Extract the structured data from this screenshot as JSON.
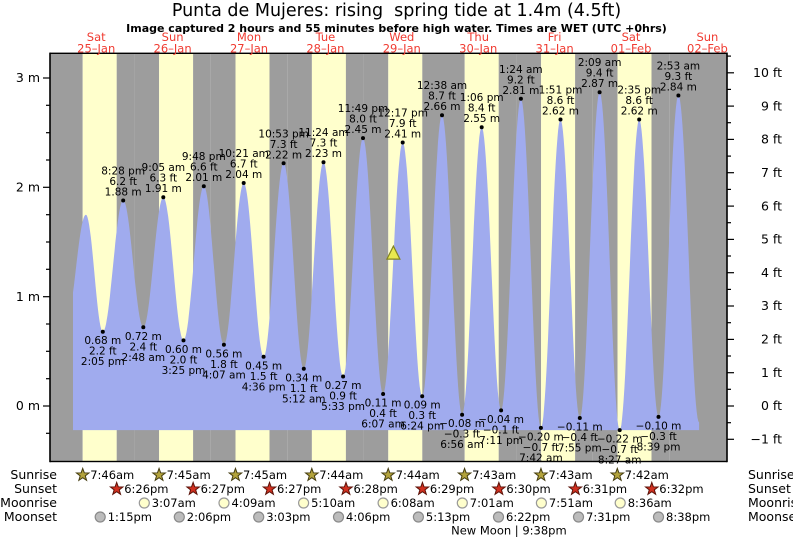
{
  "title": "Punta de Mujeres: rising  spring tide at 1.4m (4.5ft)",
  "subtitle": "Image captured 2 hours and 55 minutes before high water. Times are WET (UTC +0hrs)",
  "days": [
    {
      "name": "Sat",
      "date": "25–Jan"
    },
    {
      "name": "Sun",
      "date": "26–Jan"
    },
    {
      "name": "Mon",
      "date": "27–Jan"
    },
    {
      "name": "Tue",
      "date": "28–Jan"
    },
    {
      "name": "Wed",
      "date": "29–Jan"
    },
    {
      "name": "Thu",
      "date": "30–Jan"
    },
    {
      "name": "Fri",
      "date": "31–Jan"
    },
    {
      "name": "Sat",
      "date": "01–Feb"
    },
    {
      "name": "Sun",
      "date": "02–Feb"
    }
  ],
  "axes": {
    "left": {
      "unit": "m",
      "ticks": [
        {
          "v": 3,
          "label": "3 m"
        },
        {
          "v": 2,
          "label": "2 m"
        },
        {
          "v": 1,
          "label": "1 m"
        },
        {
          "v": 0,
          "label": "0 m"
        }
      ]
    },
    "right": {
      "unit": "ft",
      "ticks": [
        {
          "v": 10,
          "label": "10 ft"
        },
        {
          "v": 9,
          "label": "9 ft"
        },
        {
          "v": 8,
          "label": "8 ft"
        },
        {
          "v": 7,
          "label": "7 ft"
        },
        {
          "v": 6,
          "label": "6 ft"
        },
        {
          "v": 5,
          "label": "5 ft"
        },
        {
          "v": 4,
          "label": "4 ft"
        },
        {
          "v": 3,
          "label": "3 ft"
        },
        {
          "v": 2,
          "label": "2 ft"
        },
        {
          "v": 1,
          "label": "1 ft"
        },
        {
          "v": 0,
          "label": "0 ft"
        },
        {
          "v": -1,
          "label": "−1 ft"
        }
      ]
    }
  },
  "chart_data": {
    "type": "area",
    "title": "Punta de Mujeres tide curve, 25-Jan to 02-Feb",
    "ylim_m": [
      -0.5,
      3.2
    ],
    "ylim_ft": [
      -1,
      10
    ],
    "grid": false,
    "daylight": {
      "sunrise_hour": 7.75,
      "sunset_hour": 18.45,
      "no_daylight_days": [
        8
      ]
    },
    "data_window": {
      "start": {
        "day": 0,
        "hour": 4.7
      },
      "end": {
        "day": 8,
        "hour": 9.4
      }
    },
    "marker": {
      "m": 1.4,
      "ft": 4.5,
      "day": 4,
      "hour": 9.37,
      "meaning": "current tide level, rising"
    },
    "colors": {
      "night": "#9d9d9d",
      "day": "#ffffcc",
      "tide": "#a0abee",
      "label_red": "#f03b31",
      "marker_fill": "#e9e94e",
      "marker_stroke": "#83831f"
    },
    "points": [
      {
        "day": 0,
        "hour": 2.2,
        "m": 0.7,
        "kind": "low",
        "show": false
      },
      {
        "day": 0,
        "hour": 8.77,
        "m": 1.75,
        "kind": "high",
        "show": false
      },
      {
        "day": 0,
        "hour": 14.083,
        "m": 0.68,
        "ft": 2.2,
        "time": "2:05 pm",
        "kind": "low"
      },
      {
        "day": 0,
        "hour": 20.467,
        "m": 1.88,
        "ft": 6.2,
        "time": "8:28 pm",
        "kind": "high"
      },
      {
        "day": 1,
        "hour": 2.8,
        "m": 0.72,
        "ft": 2.4,
        "time": "2:48 am",
        "kind": "low"
      },
      {
        "day": 1,
        "hour": 9.083,
        "m": 1.91,
        "ft": 6.3,
        "time": "9:05 am",
        "kind": "high"
      },
      {
        "day": 1,
        "hour": 15.417,
        "m": 0.6,
        "ft": 2.0,
        "time": "3:25 pm",
        "kind": "low"
      },
      {
        "day": 1,
        "hour": 21.8,
        "m": 2.01,
        "ft": 6.6,
        "time": "9:48 pm",
        "kind": "high"
      },
      {
        "day": 2,
        "hour": 4.117,
        "m": 0.56,
        "ft": 1.8,
        "time": "4:07 am",
        "kind": "low"
      },
      {
        "day": 2,
        "hour": 10.35,
        "m": 2.04,
        "ft": 6.7,
        "time": "10:21 am",
        "kind": "high"
      },
      {
        "day": 2,
        "hour": 16.6,
        "m": 0.45,
        "ft": 1.5,
        "time": "4:36 pm",
        "kind": "low"
      },
      {
        "day": 2,
        "hour": 22.883,
        "m": 2.22,
        "ft": 7.3,
        "time": "10:53 pm",
        "kind": "high"
      },
      {
        "day": 3,
        "hour": 5.2,
        "m": 0.34,
        "ft": 1.1,
        "time": "5:12 am",
        "kind": "low"
      },
      {
        "day": 3,
        "hour": 11.4,
        "m": 2.23,
        "ft": 7.3,
        "time": "11:24 am",
        "kind": "high"
      },
      {
        "day": 3,
        "hour": 17.55,
        "m": 0.27,
        "ft": 0.9,
        "time": "5:33 pm",
        "kind": "low"
      },
      {
        "day": 3,
        "hour": 23.817,
        "m": 2.45,
        "ft": 8.0,
        "time": "11:49 pm",
        "kind": "high"
      },
      {
        "day": 4,
        "hour": 6.117,
        "m": 0.11,
        "ft": 0.4,
        "time": "6:07 am",
        "kind": "low"
      },
      {
        "day": 4,
        "hour": 12.283,
        "m": 2.41,
        "ft": 7.9,
        "time": "12:17 pm",
        "kind": "high"
      },
      {
        "day": 4,
        "hour": 18.4,
        "m": 0.09,
        "ft": 0.3,
        "time": "6:24 pm",
        "kind": "low"
      },
      {
        "day": 5,
        "hour": 0.633,
        "m": 2.66,
        "ft": 8.7,
        "time": "12:38 am",
        "kind": "high"
      },
      {
        "day": 5,
        "hour": 6.933,
        "m": -0.08,
        "ft": -0.3,
        "time": "6:56 am",
        "kind": "low"
      },
      {
        "day": 5,
        "hour": 13.1,
        "m": 2.55,
        "ft": 8.4,
        "time": "1:06 pm",
        "kind": "high"
      },
      {
        "day": 5,
        "hour": 19.183,
        "m": -0.04,
        "ft": -0.1,
        "time": "7:11 pm",
        "kind": "low"
      },
      {
        "day": 6,
        "hour": 1.4,
        "m": 2.81,
        "ft": 9.2,
        "time": "1:24 am",
        "kind": "high"
      },
      {
        "day": 6,
        "hour": 7.7,
        "m": -0.2,
        "ft": -0.7,
        "time": "7:42 am",
        "kind": "low"
      },
      {
        "day": 6,
        "hour": 13.85,
        "m": 2.62,
        "ft": 8.6,
        "time": "1:51 pm",
        "kind": "high"
      },
      {
        "day": 6,
        "hour": 19.917,
        "m": -0.11,
        "ft": -0.4,
        "time": "7:55 pm",
        "kind": "low"
      },
      {
        "day": 7,
        "hour": 2.15,
        "m": 2.87,
        "ft": 9.4,
        "time": "2:09 am",
        "kind": "high"
      },
      {
        "day": 7,
        "hour": 8.45,
        "m": -0.22,
        "ft": -0.7,
        "time": "8:27 am",
        "kind": "low"
      },
      {
        "day": 7,
        "hour": 14.583,
        "m": 2.62,
        "ft": 8.6,
        "time": "2:35 pm",
        "kind": "high"
      },
      {
        "day": 7,
        "hour": 20.65,
        "m": -0.1,
        "ft": -0.3,
        "time": "8:39 pm",
        "kind": "low"
      },
      {
        "day": 8,
        "hour": 2.883,
        "m": 2.84,
        "ft": 9.3,
        "time": "2:53 am",
        "kind": "high"
      },
      {
        "day": 8,
        "hour": 9.4,
        "m": -0.15,
        "kind": "low",
        "show": false
      }
    ]
  },
  "almanac": {
    "rows": [
      {
        "id": "sunrise",
        "label": "Sunrise",
        "icon": "sunrise-star",
        "icon_fill": "#b3a33c",
        "icon_stroke": "#443c10",
        "entries": [
          {
            "day": 0,
            "hour": 7.767,
            "time": "7:46am"
          },
          {
            "day": 1,
            "hour": 7.75,
            "time": "7:45am"
          },
          {
            "day": 2,
            "hour": 7.75,
            "time": "7:45am"
          },
          {
            "day": 3,
            "hour": 7.733,
            "time": "7:44am"
          },
          {
            "day": 4,
            "hour": 7.733,
            "time": "7:44am"
          },
          {
            "day": 5,
            "hour": 7.717,
            "time": "7:43am"
          },
          {
            "day": 6,
            "hour": 7.717,
            "time": "7:43am"
          },
          {
            "day": 7,
            "hour": 7.7,
            "time": "7:42am"
          }
        ]
      },
      {
        "id": "sunset",
        "label": "Sunset",
        "icon": "sunset-star",
        "icon_fill": "#d03020",
        "icon_stroke": "#5a1208",
        "entries": [
          {
            "day": 0,
            "hour": 18.433,
            "time": "6:26pm"
          },
          {
            "day": 1,
            "hour": 18.45,
            "time": "6:27pm"
          },
          {
            "day": 2,
            "hour": 18.45,
            "time": "6:27pm"
          },
          {
            "day": 3,
            "hour": 18.467,
            "time": "6:28pm"
          },
          {
            "day": 4,
            "hour": 18.483,
            "time": "6:29pm"
          },
          {
            "day": 5,
            "hour": 18.5,
            "time": "6:30pm"
          },
          {
            "day": 6,
            "hour": 18.517,
            "time": "6:31pm"
          },
          {
            "day": 7,
            "hour": 18.533,
            "time": "6:32pm"
          }
        ]
      },
      {
        "id": "moonrise",
        "label": "Moonrise",
        "icon": "moonrise-circle",
        "icon_fill": "#ffffcc",
        "icon_stroke": "#999999",
        "entries": [
          {
            "day": 1,
            "hour": 3.117,
            "time": "3:07am"
          },
          {
            "day": 2,
            "hour": 4.15,
            "time": "4:09am"
          },
          {
            "day": 3,
            "hour": 5.167,
            "time": "5:10am"
          },
          {
            "day": 4,
            "hour": 6.133,
            "time": "6:08am"
          },
          {
            "day": 5,
            "hour": 7.017,
            "time": "7:01am"
          },
          {
            "day": 6,
            "hour": 7.85,
            "time": "7:51am"
          },
          {
            "day": 7,
            "hour": 8.6,
            "time": "8:36am"
          }
        ]
      },
      {
        "id": "moonset",
        "label": "Moonset",
        "icon": "moonset-circle",
        "icon_fill": "#bcbcbc",
        "icon_stroke": "#8a8a8a",
        "entries": [
          {
            "day": 0,
            "hour": 13.25,
            "time": "1:15pm"
          },
          {
            "day": 1,
            "hour": 14.1,
            "time": "2:06pm"
          },
          {
            "day": 2,
            "hour": 15.05,
            "time": "3:03pm"
          },
          {
            "day": 3,
            "hour": 16.1,
            "time": "4:06pm"
          },
          {
            "day": 4,
            "hour": 17.217,
            "time": "5:13pm"
          },
          {
            "day": 5,
            "hour": 18.367,
            "time": "6:22pm"
          },
          {
            "day": 6,
            "hour": 19.517,
            "time": "7:31pm"
          },
          {
            "day": 7,
            "hour": 20.633,
            "time": "8:38pm"
          }
        ]
      }
    ],
    "moon_phase": {
      "text": "New Moon | 9:38pm",
      "day": 5,
      "hour": 21.633
    }
  }
}
